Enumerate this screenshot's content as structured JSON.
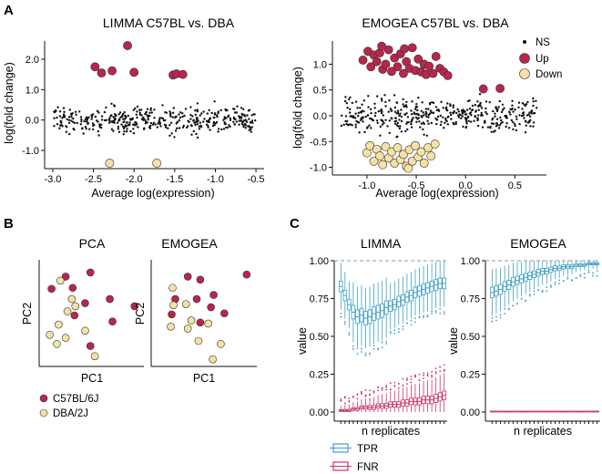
{
  "colors": {
    "ns": "#111111",
    "up": "#b8264b",
    "down": "#f5e1a4",
    "tpr": "#3d9fc1",
    "fnr": "#c7356b",
    "grid": "#999999"
  },
  "panel_a": {
    "label": "A",
    "left": {
      "title": "LIMMA C57BL vs. DBA",
      "xlabel": "Average log(expression)",
      "ylabel": "log(fold change)",
      "xticks": [
        "-3.0",
        "-2.5",
        "-2.0",
        "-1.5",
        "-1.0",
        "-0.5"
      ],
      "yticks": [
        "-1.0",
        "0.0",
        "1.0",
        "2.0"
      ]
    },
    "right": {
      "title": "EMOGEA C57BL vs. DBA",
      "xlabel": "Average log(expression)",
      "ylabel": "log(fold change)",
      "xticks": [
        "-1.0",
        "-0.5",
        "0.0",
        "0.5"
      ],
      "yticks": [
        "-1.0",
        "-0.5",
        "0.0",
        "0.5",
        "1.0"
      ],
      "legend": [
        "NS",
        "Up",
        "Down"
      ]
    }
  },
  "panel_b": {
    "label": "B",
    "titles": [
      "PCA",
      "EMOGEA"
    ],
    "xlabel": "PC1",
    "ylabel": "PC2",
    "legend": [
      "C57BL/6J",
      "DBA/2J"
    ]
  },
  "panel_c": {
    "label": "C",
    "titles": [
      "LIMMA",
      "EMOGEA"
    ],
    "xlabel": "n replicates",
    "ylabel": "value",
    "yticks": [
      "0.00",
      "0.25",
      "0.50",
      "0.75",
      "1.00"
    ],
    "legend": [
      "TPR",
      "FNR"
    ]
  },
  "chart_data": [
    {
      "type": "scatter",
      "title": "LIMMA C57BL vs. DBA",
      "xlabel": "Average log(expression)",
      "ylabel": "log(fold change)",
      "xlim": [
        -3.1,
        -0.4
      ],
      "ylim": [
        -1.6,
        2.6
      ],
      "up": [
        [
          -2.48,
          1.75
        ],
        [
          -2.4,
          1.55
        ],
        [
          -2.27,
          1.62
        ],
        [
          -2.08,
          2.45
        ],
        [
          -2.0,
          1.57
        ],
        [
          -1.52,
          1.48
        ],
        [
          -1.48,
          1.52
        ],
        [
          -1.4,
          1.5
        ]
      ],
      "down": [
        [
          -2.3,
          -1.42
        ],
        [
          -1.72,
          -1.42
        ]
      ],
      "ns_count": 420
    },
    {
      "type": "scatter",
      "title": "EMOGEA C57BL vs. DBA",
      "xlabel": "Average log(expression)",
      "ylabel": "log(fold change)",
      "xlim": [
        -1.35,
        0.82
      ],
      "ylim": [
        -1.15,
        1.45
      ],
      "up": [
        [
          -1.04,
          1.08
        ],
        [
          -0.99,
          1.25
        ],
        [
          -0.96,
          0.95
        ],
        [
          -0.93,
          1.18
        ],
        [
          -0.9,
          1.05
        ],
        [
          -0.87,
          1.22
        ],
        [
          -0.84,
          0.9
        ],
        [
          -0.81,
          1.0
        ],
        [
          -0.78,
          1.28
        ],
        [
          -0.75,
          0.86
        ],
        [
          -0.72,
          1.12
        ],
        [
          -0.69,
          0.95
        ],
        [
          -0.66,
          1.2
        ],
        [
          -0.63,
          0.82
        ],
        [
          -0.6,
          1.05
        ],
        [
          -0.57,
          0.92
        ],
        [
          -0.54,
          1.32
        ],
        [
          -0.51,
          0.88
        ],
        [
          -0.48,
          1.1
        ],
        [
          -0.45,
          0.85
        ],
        [
          -0.42,
          1.0
        ],
        [
          -0.4,
          0.8
        ],
        [
          -0.37,
          0.96
        ],
        [
          -0.33,
          0.82
        ],
        [
          -0.3,
          1.15
        ],
        [
          -0.26,
          0.92
        ],
        [
          -0.22,
          0.85
        ],
        [
          -0.18,
          0.78
        ],
        [
          -0.85,
          1.35
        ],
        [
          -0.62,
          1.3
        ],
        [
          0.18,
          0.52
        ],
        [
          0.35,
          0.53
        ]
      ],
      "down": [
        [
          -1.0,
          -0.72
        ],
        [
          -0.97,
          -0.58
        ],
        [
          -0.93,
          -0.88
        ],
        [
          -0.9,
          -0.65
        ],
        [
          -0.87,
          -0.78
        ],
        [
          -0.84,
          -0.95
        ],
        [
          -0.81,
          -0.6
        ],
        [
          -0.78,
          -0.82
        ],
        [
          -0.75,
          -0.7
        ],
        [
          -0.72,
          -0.92
        ],
        [
          -0.69,
          -0.62
        ],
        [
          -0.66,
          -0.85
        ],
        [
          -0.63,
          -0.75
        ],
        [
          -0.6,
          -0.98
        ],
        [
          -0.57,
          -0.66
        ],
        [
          -0.54,
          -0.88
        ],
        [
          -0.51,
          -0.58
        ],
        [
          -0.48,
          -0.8
        ],
        [
          -0.45,
          -0.7
        ],
        [
          -0.42,
          -0.92
        ],
        [
          -0.38,
          -0.62
        ],
        [
          -0.35,
          -0.78
        ],
        [
          -0.31,
          -0.55
        ],
        [
          -0.58,
          -1.02
        ]
      ],
      "ns_count": 430
    },
    {
      "type": "scatter",
      "title": "PCA",
      "xlabel": "PC1",
      "ylabel": "PC2",
      "xlim": [
        0,
        1
      ],
      "ylim": [
        0,
        1
      ],
      "C57BL/6J": [
        [
          0.58,
          0.92
        ],
        [
          0.38,
          0.77
        ],
        [
          0.8,
          0.66
        ],
        [
          1.08,
          0.59
        ],
        [
          0.52,
          0.62
        ],
        [
          0.83,
          0.44
        ],
        [
          0.4,
          0.5
        ],
        [
          0.58,
          0.2
        ],
        [
          0.14,
          0.76
        ],
        [
          0.3,
          0.88
        ]
      ],
      "DBA/2J": [
        [
          0.24,
          0.84
        ],
        [
          0.37,
          0.66
        ],
        [
          0.41,
          0.59
        ],
        [
          0.32,
          0.54
        ],
        [
          0.22,
          0.41
        ],
        [
          0.12,
          0.31
        ],
        [
          0.3,
          0.28
        ],
        [
          0.2,
          0.22
        ],
        [
          0.63,
          0.1
        ],
        [
          0.52,
          0.35
        ]
      ]
    },
    {
      "type": "scatter",
      "title": "EMOGEA",
      "xlabel": "PC1",
      "ylabel": "PC2",
      "xlim": [
        0,
        1
      ],
      "ylim": [
        0,
        1
      ],
      "C57BL/6J": [
        [
          0.41,
          0.88
        ],
        [
          0.55,
          0.85
        ],
        [
          1.07,
          0.9
        ],
        [
          0.7,
          0.7
        ],
        [
          0.51,
          0.66
        ],
        [
          0.67,
          0.58
        ],
        [
          0.27,
          0.66
        ],
        [
          0.23,
          0.51
        ],
        [
          0.55,
          0.43
        ],
        [
          0.82,
          0.52
        ]
      ],
      "DBA/2J": [
        [
          0.24,
          0.77
        ],
        [
          0.25,
          0.6
        ],
        [
          0.39,
          0.61
        ],
        [
          0.22,
          0.39
        ],
        [
          0.45,
          0.45
        ],
        [
          0.41,
          0.37
        ],
        [
          0.64,
          0.42
        ],
        [
          0.53,
          0.25
        ],
        [
          0.78,
          0.22
        ],
        [
          0.69,
          0.07
        ]
      ]
    },
    {
      "type": "box",
      "title": "LIMMA",
      "xlabel": "n replicates",
      "ylabel": "value",
      "ylim": [
        0,
        1
      ],
      "reference_line": 1.0,
      "series": [
        {
          "name": "TPR",
          "medians": [
            0.83,
            0.77,
            0.71,
            0.66,
            0.63,
            0.64,
            0.62,
            0.63,
            0.65,
            0.66,
            0.67,
            0.69,
            0.7,
            0.71,
            0.73,
            0.74,
            0.76,
            0.77,
            0.79,
            0.8,
            0.81,
            0.82,
            0.83,
            0.84,
            0.85,
            0.85
          ]
        },
        {
          "name": "FNR",
          "medians": [
            0.01,
            0.01,
            0.01,
            0.02,
            0.02,
            0.03,
            0.03,
            0.03,
            0.03,
            0.04,
            0.04,
            0.04,
            0.05,
            0.05,
            0.05,
            0.06,
            0.06,
            0.07,
            0.07,
            0.07,
            0.08,
            0.08,
            0.08,
            0.09,
            0.1,
            0.11
          ]
        }
      ]
    },
    {
      "type": "box",
      "title": "EMOGEA",
      "xlabel": "n replicates",
      "ylabel": "value",
      "ylim": [
        0,
        1
      ],
      "reference_line": 1.0,
      "series": [
        {
          "name": "TPR",
          "medians": [
            0.79,
            0.8,
            0.81,
            0.83,
            0.84,
            0.86,
            0.87,
            0.88,
            0.89,
            0.9,
            0.91,
            0.92,
            0.93,
            0.93,
            0.94,
            0.95,
            0.95,
            0.96,
            0.96,
            0.96,
            0.97,
            0.97,
            0.97,
            0.98,
            0.98,
            0.98
          ]
        },
        {
          "name": "FNR",
          "medians": [
            0.005,
            0.005,
            0.005,
            0.005,
            0.005,
            0.005,
            0.005,
            0.005,
            0.005,
            0.005,
            0.005,
            0.005,
            0.005,
            0.005,
            0.005,
            0.005,
            0.005,
            0.005,
            0.005,
            0.005,
            0.005,
            0.005,
            0.005,
            0.005,
            0.005,
            0.005
          ]
        }
      ]
    }
  ]
}
